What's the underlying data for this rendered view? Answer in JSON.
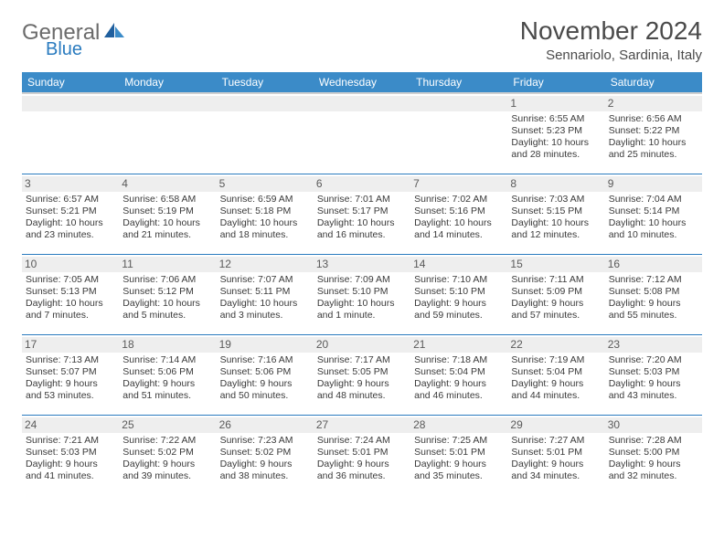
{
  "logo": {
    "word1": "General",
    "word2": "Blue"
  },
  "title": "November 2024",
  "location": "Sennariolo, Sardinia, Italy",
  "colors": {
    "header_bg": "#3b8bc8",
    "header_text": "#ffffff",
    "rule": "#2a7bbf",
    "daynum_bg": "#eeeeee",
    "text": "#3a3a3a",
    "logo_gray": "#6b6b6b",
    "logo_blue": "#2a7bbf"
  },
  "day_headers": [
    "Sunday",
    "Monday",
    "Tuesday",
    "Wednesday",
    "Thursday",
    "Friday",
    "Saturday"
  ],
  "weeks": [
    [
      null,
      null,
      null,
      null,
      null,
      {
        "n": "1",
        "sr": "6:55 AM",
        "ss": "5:23 PM",
        "dl": "10 hours and 28 minutes."
      },
      {
        "n": "2",
        "sr": "6:56 AM",
        "ss": "5:22 PM",
        "dl": "10 hours and 25 minutes."
      }
    ],
    [
      {
        "n": "3",
        "sr": "6:57 AM",
        "ss": "5:21 PM",
        "dl": "10 hours and 23 minutes."
      },
      {
        "n": "4",
        "sr": "6:58 AM",
        "ss": "5:19 PM",
        "dl": "10 hours and 21 minutes."
      },
      {
        "n": "5",
        "sr": "6:59 AM",
        "ss": "5:18 PM",
        "dl": "10 hours and 18 minutes."
      },
      {
        "n": "6",
        "sr": "7:01 AM",
        "ss": "5:17 PM",
        "dl": "10 hours and 16 minutes."
      },
      {
        "n": "7",
        "sr": "7:02 AM",
        "ss": "5:16 PM",
        "dl": "10 hours and 14 minutes."
      },
      {
        "n": "8",
        "sr": "7:03 AM",
        "ss": "5:15 PM",
        "dl": "10 hours and 12 minutes."
      },
      {
        "n": "9",
        "sr": "7:04 AM",
        "ss": "5:14 PM",
        "dl": "10 hours and 10 minutes."
      }
    ],
    [
      {
        "n": "10",
        "sr": "7:05 AM",
        "ss": "5:13 PM",
        "dl": "10 hours and 7 minutes."
      },
      {
        "n": "11",
        "sr": "7:06 AM",
        "ss": "5:12 PM",
        "dl": "10 hours and 5 minutes."
      },
      {
        "n": "12",
        "sr": "7:07 AM",
        "ss": "5:11 PM",
        "dl": "10 hours and 3 minutes."
      },
      {
        "n": "13",
        "sr": "7:09 AM",
        "ss": "5:10 PM",
        "dl": "10 hours and 1 minute."
      },
      {
        "n": "14",
        "sr": "7:10 AM",
        "ss": "5:10 PM",
        "dl": "9 hours and 59 minutes."
      },
      {
        "n": "15",
        "sr": "7:11 AM",
        "ss": "5:09 PM",
        "dl": "9 hours and 57 minutes."
      },
      {
        "n": "16",
        "sr": "7:12 AM",
        "ss": "5:08 PM",
        "dl": "9 hours and 55 minutes."
      }
    ],
    [
      {
        "n": "17",
        "sr": "7:13 AM",
        "ss": "5:07 PM",
        "dl": "9 hours and 53 minutes."
      },
      {
        "n": "18",
        "sr": "7:14 AM",
        "ss": "5:06 PM",
        "dl": "9 hours and 51 minutes."
      },
      {
        "n": "19",
        "sr": "7:16 AM",
        "ss": "5:06 PM",
        "dl": "9 hours and 50 minutes."
      },
      {
        "n": "20",
        "sr": "7:17 AM",
        "ss": "5:05 PM",
        "dl": "9 hours and 48 minutes."
      },
      {
        "n": "21",
        "sr": "7:18 AM",
        "ss": "5:04 PM",
        "dl": "9 hours and 46 minutes."
      },
      {
        "n": "22",
        "sr": "7:19 AM",
        "ss": "5:04 PM",
        "dl": "9 hours and 44 minutes."
      },
      {
        "n": "23",
        "sr": "7:20 AM",
        "ss": "5:03 PM",
        "dl": "9 hours and 43 minutes."
      }
    ],
    [
      {
        "n": "24",
        "sr": "7:21 AM",
        "ss": "5:03 PM",
        "dl": "9 hours and 41 minutes."
      },
      {
        "n": "25",
        "sr": "7:22 AM",
        "ss": "5:02 PM",
        "dl": "9 hours and 39 minutes."
      },
      {
        "n": "26",
        "sr": "7:23 AM",
        "ss": "5:02 PM",
        "dl": "9 hours and 38 minutes."
      },
      {
        "n": "27",
        "sr": "7:24 AM",
        "ss": "5:01 PM",
        "dl": "9 hours and 36 minutes."
      },
      {
        "n": "28",
        "sr": "7:25 AM",
        "ss": "5:01 PM",
        "dl": "9 hours and 35 minutes."
      },
      {
        "n": "29",
        "sr": "7:27 AM",
        "ss": "5:01 PM",
        "dl": "9 hours and 34 minutes."
      },
      {
        "n": "30",
        "sr": "7:28 AM",
        "ss": "5:00 PM",
        "dl": "9 hours and 32 minutes."
      }
    ]
  ],
  "labels": {
    "sunrise": "Sunrise:",
    "sunset": "Sunset:",
    "daylight": "Daylight:"
  }
}
